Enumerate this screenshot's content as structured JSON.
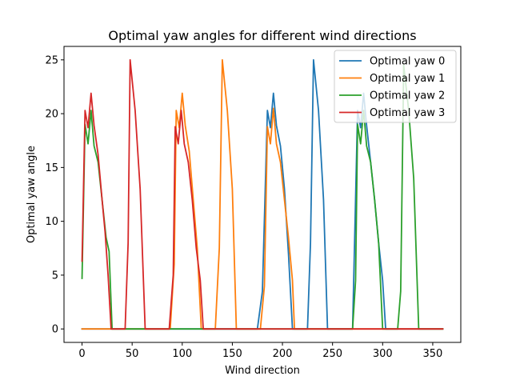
{
  "chart_data": {
    "type": "line",
    "title": "Optimal yaw angles for different wind directions",
    "xlabel": "Wind direction",
    "ylabel": "Optimal yaw angle",
    "xlim": [
      -18,
      378
    ],
    "ylim": [
      -1.25,
      26.25
    ],
    "xticks": [
      0,
      50,
      100,
      150,
      200,
      250,
      300,
      350
    ],
    "yticks": [
      0,
      5,
      10,
      15,
      20,
      25
    ],
    "grid": false,
    "legend_position": "top-right",
    "series": [
      {
        "name": "Optimal yaw 0",
        "color": "#1f77b4",
        "points": [
          [
            0,
            0
          ],
          [
            175,
            0
          ],
          [
            180,
            3.5
          ],
          [
            185,
            20.3
          ],
          [
            188,
            18.7
          ],
          [
            191,
            21.9
          ],
          [
            194,
            18.9
          ],
          [
            198,
            17
          ],
          [
            202,
            13
          ],
          [
            206,
            7
          ],
          [
            210,
            0
          ],
          [
            225,
            0
          ],
          [
            228,
            8
          ],
          [
            231,
            25
          ],
          [
            236,
            20.3
          ],
          [
            241,
            12
          ],
          [
            245,
            0
          ],
          [
            270,
            0
          ],
          [
            275,
            20.3
          ],
          [
            278,
            18.7
          ],
          [
            281,
            21.9
          ],
          [
            284,
            18.9
          ],
          [
            288,
            15.5
          ],
          [
            292,
            12
          ],
          [
            296,
            8
          ],
          [
            300,
            4.5
          ],
          [
            303,
            0
          ],
          [
            360,
            0
          ]
        ]
      },
      {
        "name": "Optimal yaw 1",
        "color": "#ff7f0e",
        "points": [
          [
            0,
            0
          ],
          [
            88,
            0
          ],
          [
            92,
            6
          ],
          [
            94,
            20.3
          ],
          [
            97,
            18.7
          ],
          [
            100,
            21.9
          ],
          [
            103,
            18.9
          ],
          [
            107,
            16.5
          ],
          [
            111,
            12
          ],
          [
            115,
            7.5
          ],
          [
            119,
            0
          ],
          [
            133,
            0
          ],
          [
            137,
            7.5
          ],
          [
            140,
            25
          ],
          [
            145,
            20.3
          ],
          [
            150,
            13
          ],
          [
            154,
            0
          ],
          [
            178,
            0
          ],
          [
            182,
            4
          ],
          [
            185,
            18.8
          ],
          [
            188,
            17.2
          ],
          [
            191,
            20.5
          ],
          [
            194,
            17.2
          ],
          [
            198,
            15.5
          ],
          [
            202,
            12
          ],
          [
            206,
            8.5
          ],
          [
            210,
            4.5
          ],
          [
            212,
            0
          ],
          [
            360,
            0
          ]
        ]
      },
      {
        "name": "Optimal yaw 2",
        "color": "#2ca02c",
        "points": [
          [
            0,
            4.7
          ],
          [
            3,
            19
          ],
          [
            6,
            17.2
          ],
          [
            9,
            20.3
          ],
          [
            12,
            17
          ],
          [
            16,
            15.5
          ],
          [
            20,
            12
          ],
          [
            24,
            8.5
          ],
          [
            27,
            7.2
          ],
          [
            30,
            0
          ],
          [
            270,
            0
          ],
          [
            273,
            4.5
          ],
          [
            275,
            19
          ],
          [
            278,
            17.2
          ],
          [
            281,
            20.3
          ],
          [
            284,
            17
          ],
          [
            288,
            15.5
          ],
          [
            292,
            12
          ],
          [
            296,
            8
          ],
          [
            300,
            0
          ],
          [
            315,
            0
          ],
          [
            318,
            3.5
          ],
          [
            321,
            24.5
          ],
          [
            326,
            20.3
          ],
          [
            331,
            14
          ],
          [
            336,
            0
          ],
          [
            360,
            0
          ]
        ]
      },
      {
        "name": "Optimal yaw 3",
        "color": "#d62728",
        "points": [
          [
            0,
            6.3
          ],
          [
            3,
            20.3
          ],
          [
            6,
            18.7
          ],
          [
            9,
            21.9
          ],
          [
            12,
            18.9
          ],
          [
            16,
            16.2
          ],
          [
            20,
            12
          ],
          [
            23,
            9
          ],
          [
            26,
            5
          ],
          [
            29,
            0
          ],
          [
            43,
            0
          ],
          [
            46,
            8
          ],
          [
            48,
            25
          ],
          [
            53,
            20.3
          ],
          [
            58,
            13
          ],
          [
            63,
            0
          ],
          [
            87,
            0
          ],
          [
            91,
            5
          ],
          [
            93,
            18.8
          ],
          [
            96,
            17.2
          ],
          [
            99,
            20.3
          ],
          [
            102,
            17.2
          ],
          [
            106,
            15.5
          ],
          [
            110,
            12
          ],
          [
            114,
            7.5
          ],
          [
            118,
            4.5
          ],
          [
            121,
            0
          ],
          [
            360,
            0
          ]
        ]
      }
    ]
  }
}
